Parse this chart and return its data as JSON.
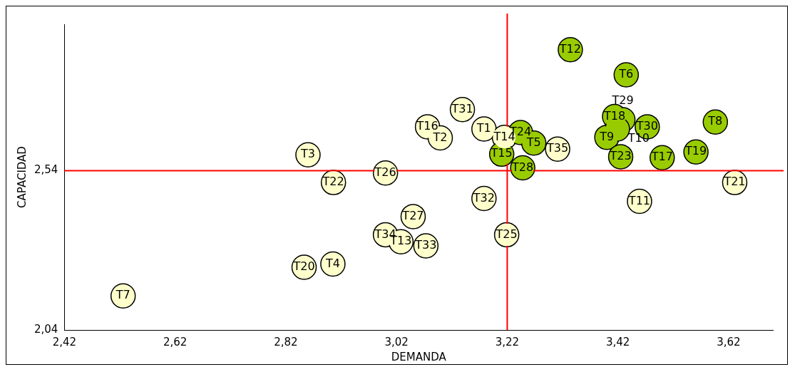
{
  "chart_data": {
    "type": "scatter",
    "xlabel": "DEMANDA",
    "ylabel": "CAPACIDAD",
    "xlim": [
      2.42,
      3.7
    ],
    "ylim": [
      2.04,
      3.0
    ],
    "xticks": [
      {
        "value": 2.42,
        "label": "2,42"
      },
      {
        "value": 2.62,
        "label": "2,62"
      },
      {
        "value": 2.82,
        "label": "2,82"
      },
      {
        "value": 3.02,
        "label": "3,02"
      },
      {
        "value": 3.22,
        "label": "3,22"
      },
      {
        "value": 3.42,
        "label": "3,42"
      },
      {
        "value": 3.62,
        "label": "3,62"
      }
    ],
    "yticks": [
      {
        "value": 2.04,
        "label": "2,04"
      },
      {
        "value": 2.54,
        "label": "2,54"
      }
    ],
    "grid": false,
    "legend": false,
    "marker": "circle",
    "ref_lines": [
      {
        "axis": "x",
        "value": 3.22,
        "color": "#ff0000"
      },
      {
        "axis": "y",
        "value": 2.54,
        "color": "#ff0000"
      }
    ],
    "series": [
      {
        "color": "#99cc00",
        "x": [
          3.334,
          3.435,
          3.414,
          3.429,
          3.596,
          3.473,
          3.4,
          3.419,
          3.244,
          3.268,
          3.21,
          3.425,
          3.5,
          3.561,
          3.248
        ],
        "values": [
          2.92,
          2.841,
          2.71,
          2.7,
          2.693,
          2.678,
          2.645,
          2.671,
          2.66,
          2.627,
          2.592,
          2.584,
          2.581,
          2.599,
          2.549
        ],
        "value_labels": [
          "T12",
          "T6",
          "T18",
          "T29",
          "T8",
          "T30",
          "T9",
          "T10",
          "T24",
          "T5",
          "T15",
          "T23",
          "T17",
          "T19",
          "T28"
        ]
      },
      {
        "color": "#ffffcc",
        "x": [
          3.178,
          3.215,
          3.311,
          3.139,
          3.076,
          3.099,
          2.86,
          3.0,
          2.906,
          3.631,
          3.178,
          3.459,
          3.05,
          3.0,
          3.028,
          3.219,
          3.073,
          2.905,
          2.853,
          2.526
        ],
        "values": [
          2.671,
          2.645,
          2.608,
          2.732,
          2.678,
          2.643,
          2.59,
          2.533,
          2.503,
          2.503,
          2.453,
          2.444,
          2.396,
          2.339,
          2.317,
          2.339,
          2.304,
          2.247,
          2.237,
          2.147
        ],
        "value_labels": [
          "T1",
          "T14",
          "T35",
          "T31",
          "T16",
          "T2",
          "T3",
          "T26",
          "T22",
          "T21",
          "T32",
          "T11",
          "T27",
          "T34",
          "T13",
          "T25",
          "T33",
          "T4",
          "T20",
          "T7"
        ]
      }
    ]
  }
}
